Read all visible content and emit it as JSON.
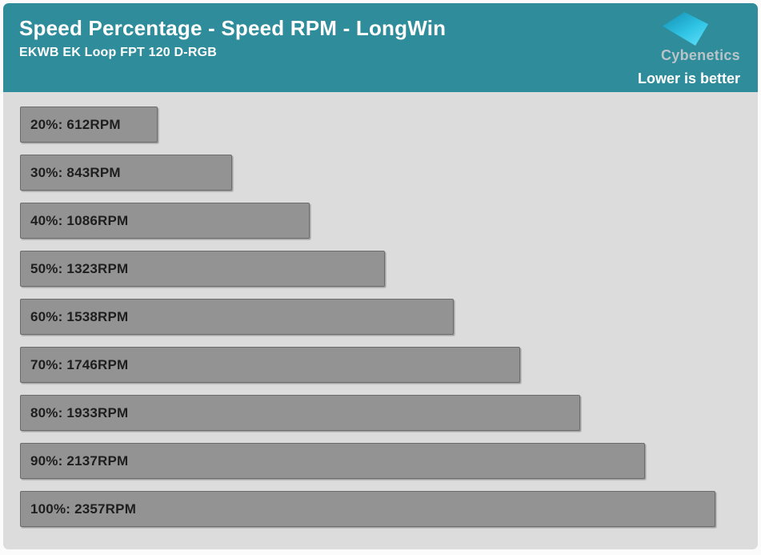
{
  "header": {
    "title": "Speed Percentage - Speed RPM - LongWin",
    "subtitle": "EKWB EK Loop FPT 120 D-RGB",
    "brand": "Cybenetics",
    "note": "Lower is better"
  },
  "colors": {
    "header_bg": "#2E8C9B",
    "body_bg": "#DCDCDC",
    "bar_fill": "#939393",
    "bar_border": "#6C6C6C",
    "bar_text": "#1E1E1E",
    "title_text": "#FFFFFF",
    "brand_text": "#B9C4C9",
    "logo_gradient_start": "#1795B8",
    "logo_gradient_end": "#62E2FA"
  },
  "chart_data": {
    "type": "bar",
    "orientation": "horizontal",
    "title": "Speed Percentage - Speed RPM - LongWin",
    "subtitle": "EKWB EK Loop FPT 120 D-RGB",
    "note": "Lower is better",
    "unit": "RPM",
    "categories": [
      "20%",
      "30%",
      "40%",
      "50%",
      "60%",
      "70%",
      "80%",
      "90%",
      "100%"
    ],
    "values": [
      612,
      843,
      1086,
      1323,
      1538,
      1746,
      1933,
      2137,
      2357
    ],
    "bar_labels": [
      "20%: 612RPM",
      "30%: 843RPM",
      "40%: 1086RPM",
      "50%: 1323RPM",
      "60%: 1538RPM",
      "70%: 1746RPM",
      "80%: 1933RPM",
      "90%: 2137RPM",
      "100%: 2357RPM"
    ],
    "xlim": [
      180,
      2420
    ],
    "grid": false,
    "legend": null
  }
}
